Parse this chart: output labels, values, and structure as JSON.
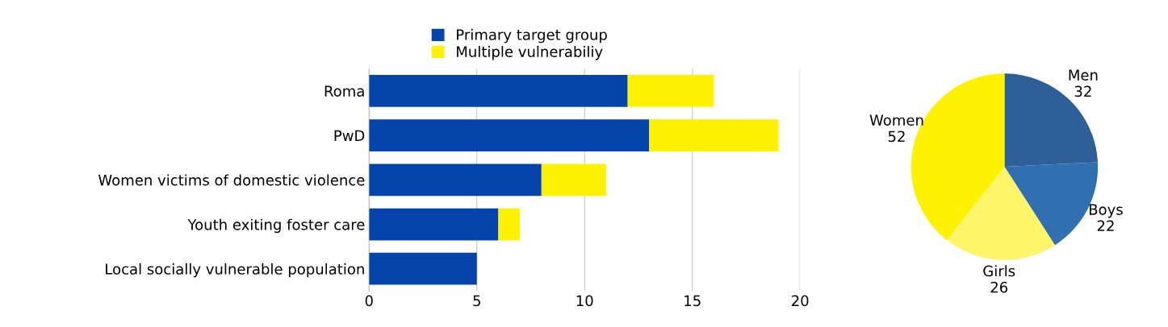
{
  "chart_data": [
    {
      "type": "bar",
      "orientation": "horizontal",
      "stacked": true,
      "categories": [
        "Roma",
        "PwD",
        "Women victims of domestic violence",
        "Youth exiting foster care",
        "Local socially vulnerable population"
      ],
      "series": [
        {
          "name": "Primary target group",
          "color": "#0545ab",
          "values": [
            12,
            13,
            8,
            6,
            5
          ]
        },
        {
          "name": "Multiple vulnerabiliy",
          "color": "#fff200",
          "values": [
            4,
            6,
            3,
            1,
            0
          ]
        }
      ],
      "xlim": [
        0,
        20
      ],
      "xticks": [
        0,
        5,
        10,
        15,
        20
      ],
      "grid": "x",
      "legend": "top"
    },
    {
      "type": "pie",
      "categories": [
        "Men",
        "Boys",
        "Girls",
        "Women"
      ],
      "values": [
        32,
        22,
        26,
        52
      ],
      "colors": [
        "#2e5f96",
        "#3070b0",
        "#fff56b",
        "#fff200"
      ],
      "data_labels": true
    }
  ]
}
